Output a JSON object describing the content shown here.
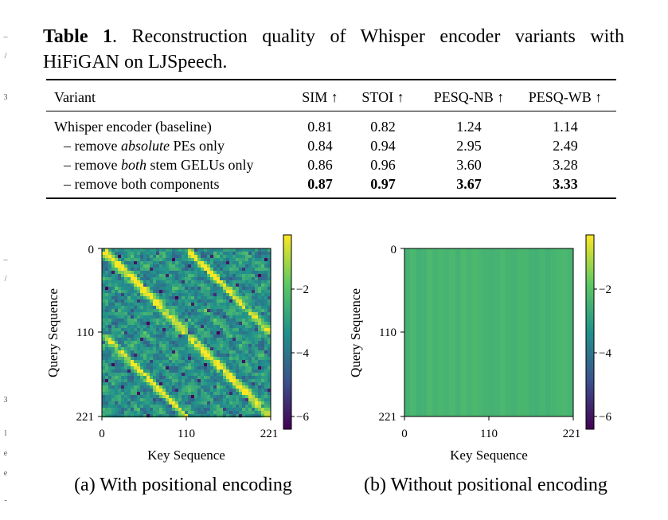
{
  "caption": {
    "label": "Table 1",
    "text": ". Reconstruction quality of Whisper encoder variants with HiFiGAN on LJSpeech."
  },
  "table": {
    "headers": [
      "Variant",
      "SIM ↑",
      "STOI ↑",
      "PESQ-NB ↑",
      "PESQ-WB ↑"
    ],
    "rows": [
      {
        "pre": "Whisper encoder (baseline)",
        "em": "",
        "post": "",
        "values": [
          "0.81",
          "0.82",
          "1.24",
          "1.14"
        ],
        "bold": false
      },
      {
        "pre": "– remove ",
        "em": "absolute",
        "post": " PEs only",
        "values": [
          "0.84",
          "0.94",
          "2.95",
          "2.49"
        ],
        "bold": false
      },
      {
        "pre": "– remove ",
        "em": "both",
        "post": " stem GELUs only",
        "values": [
          "0.86",
          "0.96",
          "3.60",
          "3.28"
        ],
        "bold": false
      },
      {
        "pre": "– remove both components",
        "em": "",
        "post": "",
        "values": [
          "0.87",
          "0.97",
          "3.67",
          "3.33"
        ],
        "bold": true
      }
    ]
  },
  "figures": {
    "a": {
      "caption": "(a) With positional encoding",
      "ylabel": "Query Sequence",
      "xlabel": "Key Sequence",
      "ticks": [
        "0",
        "110",
        "221"
      ],
      "colorbar_ticks": [
        "−2",
        "−4",
        "−6"
      ]
    },
    "b": {
      "caption": "(b) Without positional encoding",
      "ylabel": "Query Sequence",
      "xlabel": "Key Sequence",
      "ticks": [
        "0",
        "110",
        "221"
      ],
      "colorbar_ticks": [
        "−2",
        "−4",
        "−6"
      ]
    }
  },
  "colormap": [
    "#440154",
    "#3b528b",
    "#21918c",
    "#5ec962",
    "#fde725"
  ],
  "margin_marks": [
    "–",
    "/",
    "3",
    "–",
    "/",
    "3",
    "l",
    "e",
    "e",
    "-"
  ]
}
